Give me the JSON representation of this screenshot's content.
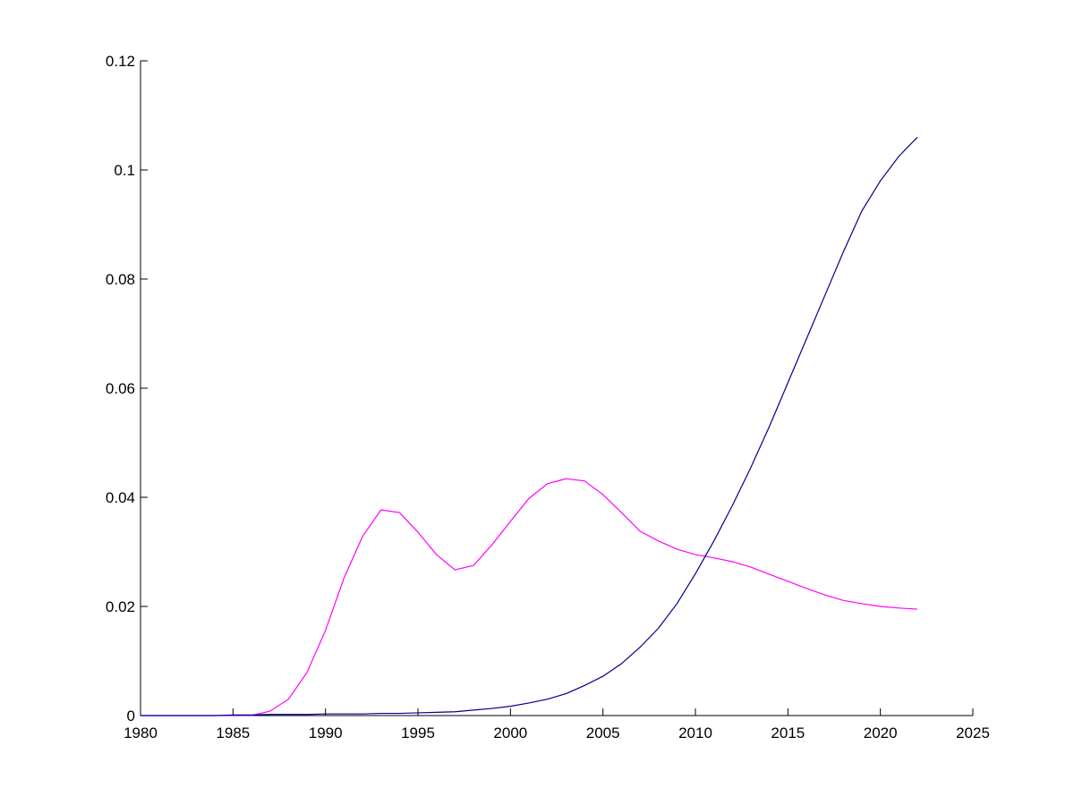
{
  "chart_data": {
    "type": "line",
    "x": [
      1980,
      1981,
      1982,
      1983,
      1984,
      1985,
      1986,
      1987,
      1988,
      1989,
      1990,
      1991,
      1992,
      1993,
      1994,
      1995,
      1996,
      1997,
      1998,
      1999,
      2000,
      2001,
      2002,
      2003,
      2004,
      2005,
      2006,
      2007,
      2008,
      2009,
      2010,
      2011,
      2012,
      2013,
      2014,
      2015,
      2016,
      2017,
      2018,
      2019,
      2020,
      2021,
      2022
    ],
    "series": [
      {
        "color": "#ff00ff",
        "values": [
          0,
          0,
          0,
          0,
          0,
          0,
          0,
          0.0008,
          0.003,
          0.0079,
          0.0156,
          0.0252,
          0.0328,
          0.0377,
          0.0372,
          0.0336,
          0.0295,
          0.0267,
          0.0275,
          0.0313,
          0.0356,
          0.0398,
          0.0425,
          0.0434,
          0.043,
          0.0405,
          0.0372,
          0.0338,
          0.032,
          0.0305,
          0.0295,
          0.0289,
          0.0282,
          0.0272,
          0.0259,
          0.0246,
          0.0233,
          0.0221,
          0.0211,
          0.0205,
          0.02,
          0.0197,
          0.0195
        ]
      },
      {
        "color": "#00008b",
        "values": [
          0,
          0,
          0,
          0,
          0,
          0.0001,
          0.0001,
          0.0002,
          0.0002,
          0.0002,
          0.0003,
          0.0003,
          0.0003,
          0.0004,
          0.0004,
          0.0005,
          0.0006,
          0.0007,
          0.001,
          0.0013,
          0.0017,
          0.0023,
          0.003,
          0.004,
          0.0055,
          0.0072,
          0.0095,
          0.0125,
          0.016,
          0.0205,
          0.026,
          0.032,
          0.0385,
          0.0455,
          0.053,
          0.061,
          0.069,
          0.077,
          0.085,
          0.0925,
          0.098,
          0.1025,
          0.106
        ]
      }
    ],
    "xlim": [
      1980,
      2025
    ],
    "xticks": [
      1980,
      1985,
      1990,
      1995,
      2000,
      2005,
      2010,
      2015,
      2020,
      2025
    ],
    "ylim": [
      0,
      0.12
    ],
    "yticks": [
      0,
      0.02,
      0.04,
      0.06,
      0.08,
      0.1,
      0.12
    ]
  }
}
